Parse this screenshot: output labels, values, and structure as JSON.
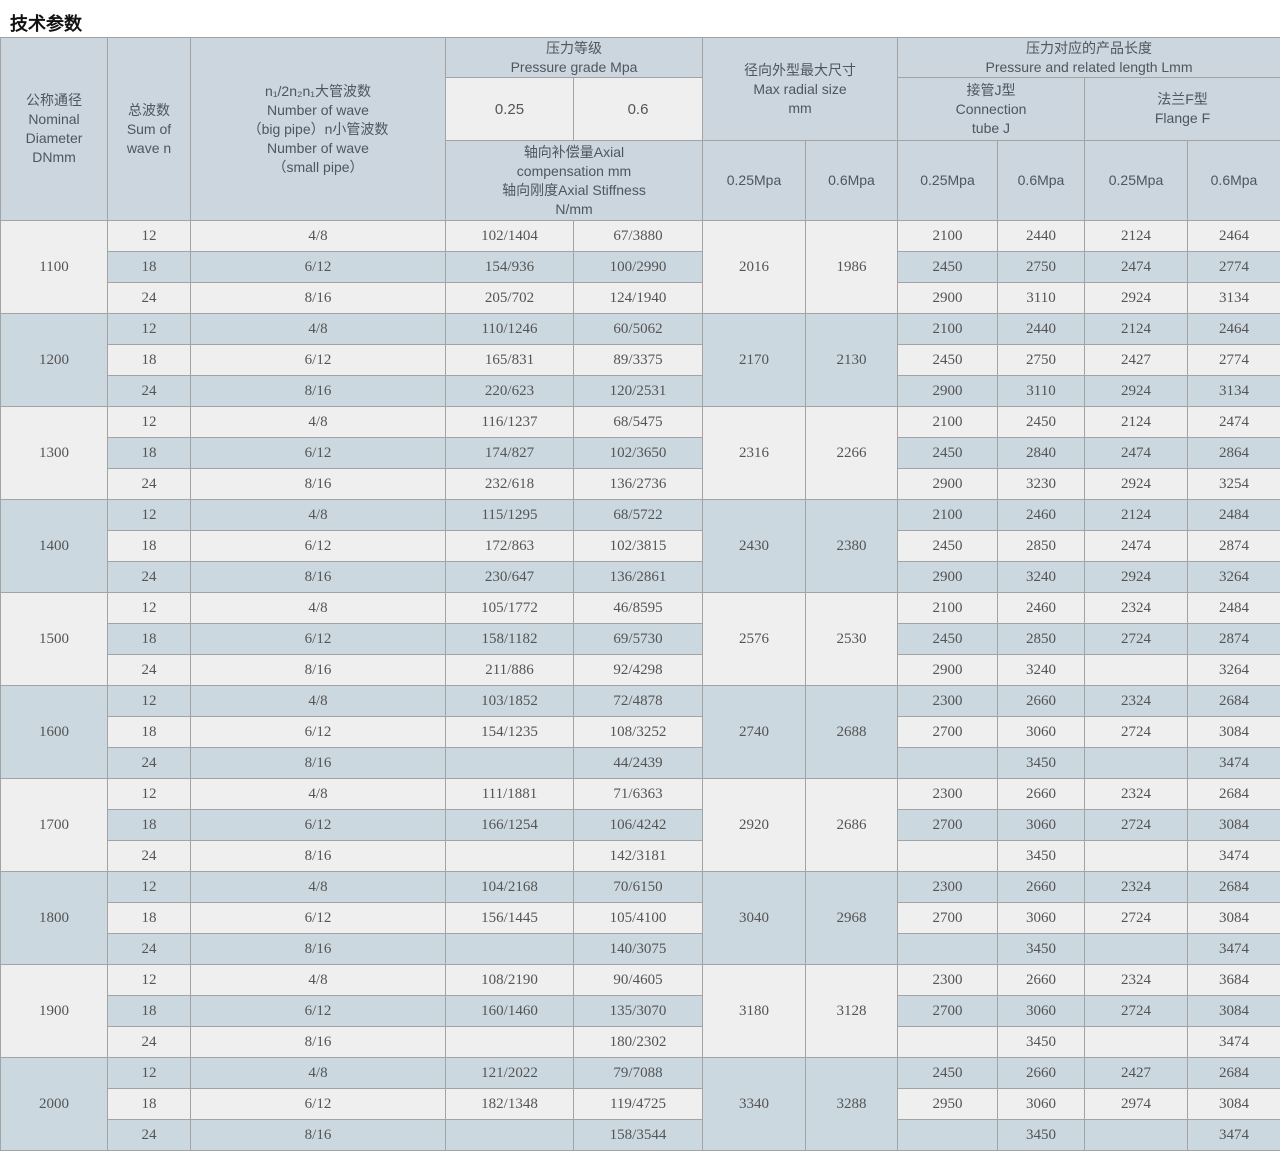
{
  "page_title": "技术参数",
  "colors": {
    "header_bg": "#ccd6de",
    "row_light": "#efefef",
    "row_blue": "#ccd8e0",
    "border": "#a3a3a3",
    "text": "#545454"
  },
  "table": {
    "headers": {
      "nominal_diameter": "公称通径\nNominal\nDiameter\nDNmm",
      "sum_of_wave": "总波数\nSum of\nwave n",
      "wave_number": "n₁/2n₂n₁大管波数\nNumber of wave\n（big pipe）n小管波数\nNumber of wave\n（small pipe）",
      "pressure_grade": "压力等级\nPressure grade Mpa",
      "pressure_025": "0.25",
      "pressure_06": "0.6",
      "axial": "轴向补偿量Axial\ncompensation mm\n轴向刚度Axial Stiffness\nN/mm",
      "max_radial": "径向外型最大尺寸\nMax radial size\nmm",
      "pressure_length": "压力对应的产品长度\nPressure and related length Lmm",
      "connection_tube": "接管J型\nConnection\ntube J",
      "flange": "法兰F型\nFlange F",
      "radial_mpa_025": "0.25Mpa",
      "radial_mpa_06": "0.6Mpa",
      "j_mpa_025": "0.25Mpa",
      "j_mpa_06": "0.6Mpa",
      "f_mpa_025": "0.25Mpa",
      "f_mpa_06": "0.6Mpa"
    },
    "groups": [
      {
        "dn": "1100",
        "radial_025": "2016",
        "radial_06": "1986",
        "rows": [
          {
            "wave": "12",
            "n": "4/8",
            "axial_025": "102/1404",
            "axial_06": "67/3880",
            "j_025": "2100",
            "j_06": "2440",
            "f_025": "2124",
            "f_06": "2464"
          },
          {
            "wave": "18",
            "n": "6/12",
            "axial_025": "154/936",
            "axial_06": "100/2990",
            "j_025": "2450",
            "j_06": "2750",
            "f_025": "2474",
            "f_06": "2774"
          },
          {
            "wave": "24",
            "n": "8/16",
            "axial_025": "205/702",
            "axial_06": "124/1940",
            "j_025": "2900",
            "j_06": "3110",
            "f_025": "2924",
            "f_06": "3134"
          }
        ]
      },
      {
        "dn": "1200",
        "radial_025": "2170",
        "radial_06": "2130",
        "rows": [
          {
            "wave": "12",
            "n": "4/8",
            "axial_025": "110/1246",
            "axial_06": "60/5062",
            "j_025": "2100",
            "j_06": "2440",
            "f_025": "2124",
            "f_06": "2464"
          },
          {
            "wave": "18",
            "n": "6/12",
            "axial_025": "165/831",
            "axial_06": "89/3375",
            "j_025": "2450",
            "j_06": "2750",
            "f_025": "2427",
            "f_06": "2774"
          },
          {
            "wave": "24",
            "n": "8/16",
            "axial_025": "220/623",
            "axial_06": "120/2531",
            "j_025": "2900",
            "j_06": "3110",
            "f_025": "2924",
            "f_06": "3134"
          }
        ]
      },
      {
        "dn": "1300",
        "radial_025": "2316",
        "radial_06": "2266",
        "rows": [
          {
            "wave": "12",
            "n": "4/8",
            "axial_025": "116/1237",
            "axial_06": "68/5475",
            "j_025": "2100",
            "j_06": "2450",
            "f_025": "2124",
            "f_06": "2474"
          },
          {
            "wave": "18",
            "n": "6/12",
            "axial_025": "174/827",
            "axial_06": "102/3650",
            "j_025": "2450",
            "j_06": "2840",
            "f_025": "2474",
            "f_06": "2864"
          },
          {
            "wave": "24",
            "n": "8/16",
            "axial_025": "232/618",
            "axial_06": "136/2736",
            "j_025": "2900",
            "j_06": "3230",
            "f_025": "2924",
            "f_06": "3254"
          }
        ]
      },
      {
        "dn": "1400",
        "radial_025": "2430",
        "radial_06": "2380",
        "rows": [
          {
            "wave": "12",
            "n": "4/8",
            "axial_025": "115/1295",
            "axial_06": "68/5722",
            "j_025": "2100",
            "j_06": "2460",
            "f_025": "2124",
            "f_06": "2484"
          },
          {
            "wave": "18",
            "n": "6/12",
            "axial_025": "172/863",
            "axial_06": "102/3815",
            "j_025": "2450",
            "j_06": "2850",
            "f_025": "2474",
            "f_06": "2874"
          },
          {
            "wave": "24",
            "n": "8/16",
            "axial_025": "230/647",
            "axial_06": "136/2861",
            "j_025": "2900",
            "j_06": "3240",
            "f_025": "2924",
            "f_06": "3264"
          }
        ]
      },
      {
        "dn": "1500",
        "radial_025": "2576",
        "radial_06": "2530",
        "rows": [
          {
            "wave": "12",
            "n": "4/8",
            "axial_025": "105/1772",
            "axial_06": "46/8595",
            "j_025": "2100",
            "j_06": "2460",
            "f_025": "2324",
            "f_06": "2484"
          },
          {
            "wave": "18",
            "n": "6/12",
            "axial_025": "158/1182",
            "axial_06": "69/5730",
            "j_025": "2450",
            "j_06": "2850",
            "f_025": "2724",
            "f_06": "2874"
          },
          {
            "wave": "24",
            "n": "8/16",
            "axial_025": "211/886",
            "axial_06": "92/4298",
            "j_025": "2900",
            "j_06": "3240",
            "f_025": "",
            "f_06": "3264"
          }
        ]
      },
      {
        "dn": "1600",
        "radial_025": "2740",
        "radial_06": "2688",
        "rows": [
          {
            "wave": "12",
            "n": "4/8",
            "axial_025": "103/1852",
            "axial_06": "72/4878",
            "j_025": "2300",
            "j_06": "2660",
            "f_025": "2324",
            "f_06": "2684"
          },
          {
            "wave": "18",
            "n": "6/12",
            "axial_025": "154/1235",
            "axial_06": "108/3252",
            "j_025": "2700",
            "j_06": "3060",
            "f_025": "2724",
            "f_06": "3084"
          },
          {
            "wave": "24",
            "n": "8/16",
            "axial_025": "",
            "axial_06": "44/2439",
            "j_025": "",
            "j_06": "3450",
            "f_025": "",
            "f_06": "3474"
          }
        ]
      },
      {
        "dn": "1700",
        "radial_025": "2920",
        "radial_06": "2686",
        "rows": [
          {
            "wave": "12",
            "n": "4/8",
            "axial_025": "111/1881",
            "axial_06": "71/6363",
            "j_025": "2300",
            "j_06": "2660",
            "f_025": "2324",
            "f_06": "2684"
          },
          {
            "wave": "18",
            "n": "6/12",
            "axial_025": "166/1254",
            "axial_06": "106/4242",
            "j_025": "2700",
            "j_06": "3060",
            "f_025": "2724",
            "f_06": "3084"
          },
          {
            "wave": "24",
            "n": "8/16",
            "axial_025": "",
            "axial_06": "142/3181",
            "j_025": "",
            "j_06": "3450",
            "f_025": "",
            "f_06": "3474"
          }
        ]
      },
      {
        "dn": "1800",
        "radial_025": "3040",
        "radial_06": "2968",
        "rows": [
          {
            "wave": "12",
            "n": "4/8",
            "axial_025": "104/2168",
            "axial_06": "70/6150",
            "j_025": "2300",
            "j_06": "2660",
            "f_025": "2324",
            "f_06": "2684"
          },
          {
            "wave": "18",
            "n": "6/12",
            "axial_025": "156/1445",
            "axial_06": "105/4100",
            "j_025": "2700",
            "j_06": "3060",
            "f_025": "2724",
            "f_06": "3084"
          },
          {
            "wave": "24",
            "n": "8/16",
            "axial_025": "",
            "axial_06": "140/3075",
            "j_025": "",
            "j_06": "3450",
            "f_025": "",
            "f_06": "3474"
          }
        ]
      },
      {
        "dn": "1900",
        "radial_025": "3180",
        "radial_06": "3128",
        "rows": [
          {
            "wave": "12",
            "n": "4/8",
            "axial_025": "108/2190",
            "axial_06": "90/4605",
            "j_025": "2300",
            "j_06": "2660",
            "f_025": "2324",
            "f_06": "3684"
          },
          {
            "wave": "18",
            "n": "6/12",
            "axial_025": "160/1460",
            "axial_06": "135/3070",
            "j_025": "2700",
            "j_06": "3060",
            "f_025": "2724",
            "f_06": "3084"
          },
          {
            "wave": "24",
            "n": "8/16",
            "axial_025": "",
            "axial_06": "180/2302",
            "j_025": "",
            "j_06": "3450",
            "f_025": "",
            "f_06": "3474"
          }
        ]
      },
      {
        "dn": "2000",
        "radial_025": "3340",
        "radial_06": "3288",
        "rows": [
          {
            "wave": "12",
            "n": "4/8",
            "axial_025": "121/2022",
            "axial_06": "79/7088",
            "j_025": "2450",
            "j_06": "2660",
            "f_025": "2427",
            "f_06": "2684"
          },
          {
            "wave": "18",
            "n": "6/12",
            "axial_025": "182/1348",
            "axial_06": "119/4725",
            "j_025": "2950",
            "j_06": "3060",
            "f_025": "2974",
            "f_06": "3084"
          },
          {
            "wave": "24",
            "n": "8/16",
            "axial_025": "",
            "axial_06": "158/3544",
            "j_025": "",
            "j_06": "3450",
            "f_025": "",
            "f_06": "3474"
          }
        ]
      }
    ]
  }
}
